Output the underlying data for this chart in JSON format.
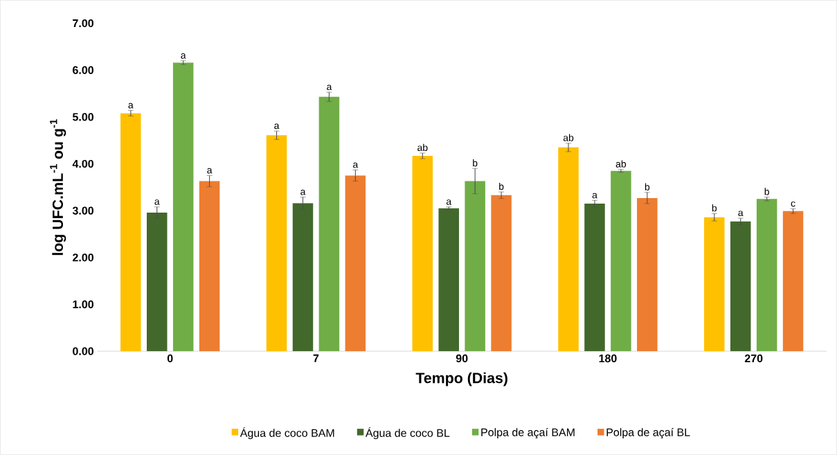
{
  "chart_data": {
    "type": "bar",
    "xlabel": "Tempo (Dias)",
    "ylabel": "log UFC.mL$^{-1}$ ou g$^{-1}$",
    "categories": [
      "0",
      "7",
      "90",
      "180",
      "270"
    ],
    "series": [
      {
        "name": "Água de coco BAM",
        "color": "#ffc000",
        "values": [
          5.08,
          4.61,
          4.17,
          4.35,
          2.86
        ],
        "errors": [
          0.06,
          0.09,
          0.06,
          0.09,
          0.08
        ],
        "value_labels": [
          "a",
          "a",
          "ab",
          "ab",
          "b"
        ]
      },
      {
        "name": "Água de coco BL",
        "color": "#43682b",
        "values": [
          2.96,
          3.16,
          3.05,
          3.15,
          2.77
        ],
        "errors": [
          0.12,
          0.13,
          0.03,
          0.07,
          0.07
        ],
        "value_labels": [
          "a",
          "a",
          "a",
          "a",
          "a"
        ]
      },
      {
        "name": "Polpa de açaí BAM",
        "color": "#70ad47",
        "values": [
          6.16,
          5.43,
          3.63,
          3.85,
          3.25
        ],
        "errors": [
          0.04,
          0.1,
          0.27,
          0.03,
          0.04
        ],
        "value_labels": [
          "a",
          "a",
          "b",
          "ab",
          "b"
        ]
      },
      {
        "name": "Polpa de açaí BL",
        "color": "#ed7d31",
        "values": [
          3.63,
          3.75,
          3.33,
          3.27,
          2.99
        ],
        "errors": [
          0.12,
          0.12,
          0.07,
          0.12,
          0.05
        ],
        "value_labels": [
          "a",
          "a",
          "b",
          "b",
          "c"
        ]
      }
    ],
    "ylim": [
      0,
      7
    ],
    "yticks": [
      {
        "value": 0,
        "label": "0.00"
      },
      {
        "value": 1,
        "label": "1.00"
      },
      {
        "value": 2,
        "label": "2.00"
      },
      {
        "value": 3,
        "label": "3.00"
      },
      {
        "value": 4,
        "label": "4.00"
      },
      {
        "value": 5,
        "label": "5.00"
      },
      {
        "value": 6,
        "label": "6.00"
      },
      {
        "value": 7,
        "label": "7.00"
      }
    ],
    "legend": "bottom"
  }
}
